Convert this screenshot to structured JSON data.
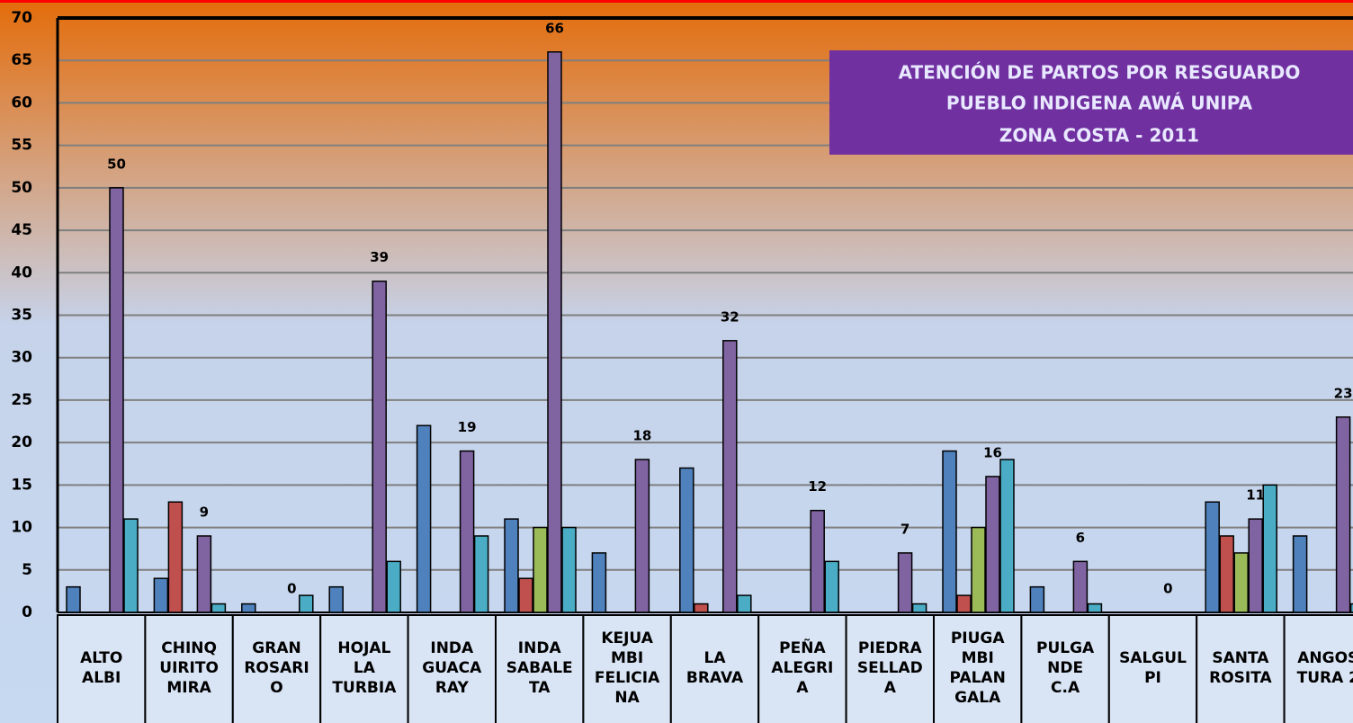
{
  "chart_data": {
    "type": "bar",
    "title": [
      "ATENCIÓN DE PARTOS  POR RESGUARDO",
      "PUEBLO INDIGENA AWÁ UNIPA",
      "ZONA COSTA - 2011"
    ],
    "categories": [
      "ALTO\nALBI",
      "CHINQ\nUIRITO\nMIRA",
      "GRAN\nROSARI\nO",
      "HOJAL\nLA\nTURBIA",
      "INDA\nGUACA\nRAY",
      "INDA\nSABALE\nTA",
      "KEJUA\nMBI\nFELICIA\nNA",
      "LA\nBRAVA",
      "PEÑA\nALEGRI\nA",
      "PIEDRA\nSELLAD\nA",
      "PIUGA\nMBI\nPALAN\nGALA",
      "PULGA\nNDE\nC.A",
      "SALGUL\nPI",
      "SANTA\nROSITA",
      "ANGOS\nTURA 2"
    ],
    "series": [
      {
        "color": "#4f81bd",
        "values": [
          3,
          4,
          1,
          3,
          22,
          11,
          7,
          17,
          0,
          0,
          19,
          3,
          0,
          13,
          9
        ]
      },
      {
        "color": "#c0504d",
        "values": [
          0,
          13,
          0,
          0,
          0,
          4,
          0,
          1,
          0,
          0,
          2,
          0,
          0,
          9,
          0
        ]
      },
      {
        "color": "#9bbb59",
        "values": [
          0,
          0,
          0,
          0,
          0,
          10,
          0,
          0,
          0,
          0,
          10,
          0,
          0,
          7,
          0
        ]
      },
      {
        "color": "#8064a2",
        "show_labels": true,
        "values": [
          50,
          9,
          0,
          39,
          19,
          66,
          18,
          32,
          12,
          7,
          16,
          6,
          0,
          11,
          23
        ]
      },
      {
        "color": "#4bacc6",
        "values": [
          11,
          1,
          2,
          6,
          9,
          10,
          0,
          2,
          6,
          1,
          18,
          1,
          0,
          15,
          1
        ]
      }
    ],
    "ylim": [
      0,
      70
    ],
    "yticks": [
      0,
      5,
      10,
      15,
      20,
      25,
      30,
      35,
      40,
      45,
      50,
      55,
      60,
      65,
      70
    ],
    "grid": true
  }
}
